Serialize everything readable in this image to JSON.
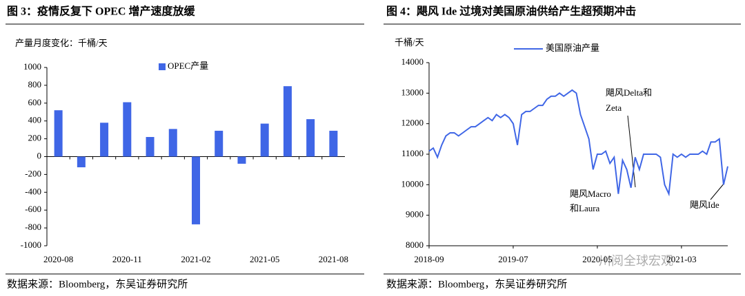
{
  "chart_data": [
    {
      "type": "bar",
      "title": "图 3：疫情反复下 OPEC 增产速度放缓",
      "y_label": "产量月度变化：千桶/天",
      "categories": [
        "2020-08",
        null,
        null,
        "2020-11",
        null,
        null,
        "2021-02",
        null,
        null,
        "2021-05",
        null,
        null,
        "2021-08"
      ],
      "series": [
        {
          "name": "OPEC产量",
          "color": "#3f66e6",
          "values": [
            520,
            -120,
            380,
            610,
            220,
            310,
            -760,
            290,
            -80,
            370,
            790,
            420,
            290
          ]
        }
      ],
      "ylim": [
        -1000,
        1000
      ],
      "yticks": [
        -1000,
        -800,
        -600,
        -400,
        -200,
        0,
        200,
        400,
        600,
        800,
        1000
      ],
      "grid": false,
      "legend": "top",
      "source": "数据来源：Bloomberg，东吴证券研究所"
    },
    {
      "type": "line",
      "title": "图 4：飓风 Ide 过境对美国原油供给产生超预期冲击",
      "y_label": "千桶/天",
      "categories": [
        "2018-09",
        null,
        null,
        null,
        null,
        null,
        null,
        null,
        null,
        null,
        null,
        null,
        null,
        null,
        null,
        null,
        null,
        null,
        null,
        null,
        "2019-07",
        null,
        null,
        null,
        null,
        null,
        null,
        null,
        null,
        null,
        null,
        null,
        null,
        null,
        null,
        null,
        null,
        null,
        null,
        null,
        "2020-05",
        null,
        null,
        null,
        null,
        null,
        null,
        null,
        null,
        null,
        null,
        null,
        null,
        null,
        null,
        null,
        null,
        null,
        null,
        null,
        "2021-03",
        null,
        null,
        null,
        null,
        null,
        null,
        null,
        null,
        null,
        null,
        null
      ],
      "series": [
        {
          "name": "美国原油产量",
          "color": "#3f66e6",
          "values": [
            11100,
            11200,
            10900,
            11300,
            11600,
            11700,
            11700,
            11600,
            11700,
            11800,
            11900,
            11900,
            12000,
            12100,
            12200,
            12100,
            12300,
            12200,
            12300,
            12200,
            12000,
            11300,
            12300,
            12400,
            12400,
            12500,
            12600,
            12600,
            12800,
            12900,
            12900,
            13000,
            12900,
            13000,
            13100,
            13000,
            12300,
            11900,
            11500,
            10500,
            11000,
            11000,
            11100,
            10700,
            10900,
            9700,
            10800,
            10500,
            9900,
            10900,
            10500,
            11000,
            11000,
            11000,
            11000,
            10900,
            10000,
            9700,
            11000,
            10900,
            11000,
            10900,
            11000,
            11000,
            11000,
            11100,
            11000,
            11400,
            11400,
            11500,
            10000,
            10600
          ]
        }
      ],
      "ylim": [
        8000,
        14000
      ],
      "yticks": [
        8000,
        9000,
        10000,
        11000,
        12000,
        13000,
        14000
      ],
      "grid": false,
      "legend": "top",
      "annotations": [
        "飓风Delta和",
        "Zeta",
        "飓风Macro",
        "和Laura",
        "飓风Ide"
      ],
      "watermark": "川阅全球宏观",
      "source": "数据来源：Bloomberg，东吴证券研究所"
    }
  ]
}
